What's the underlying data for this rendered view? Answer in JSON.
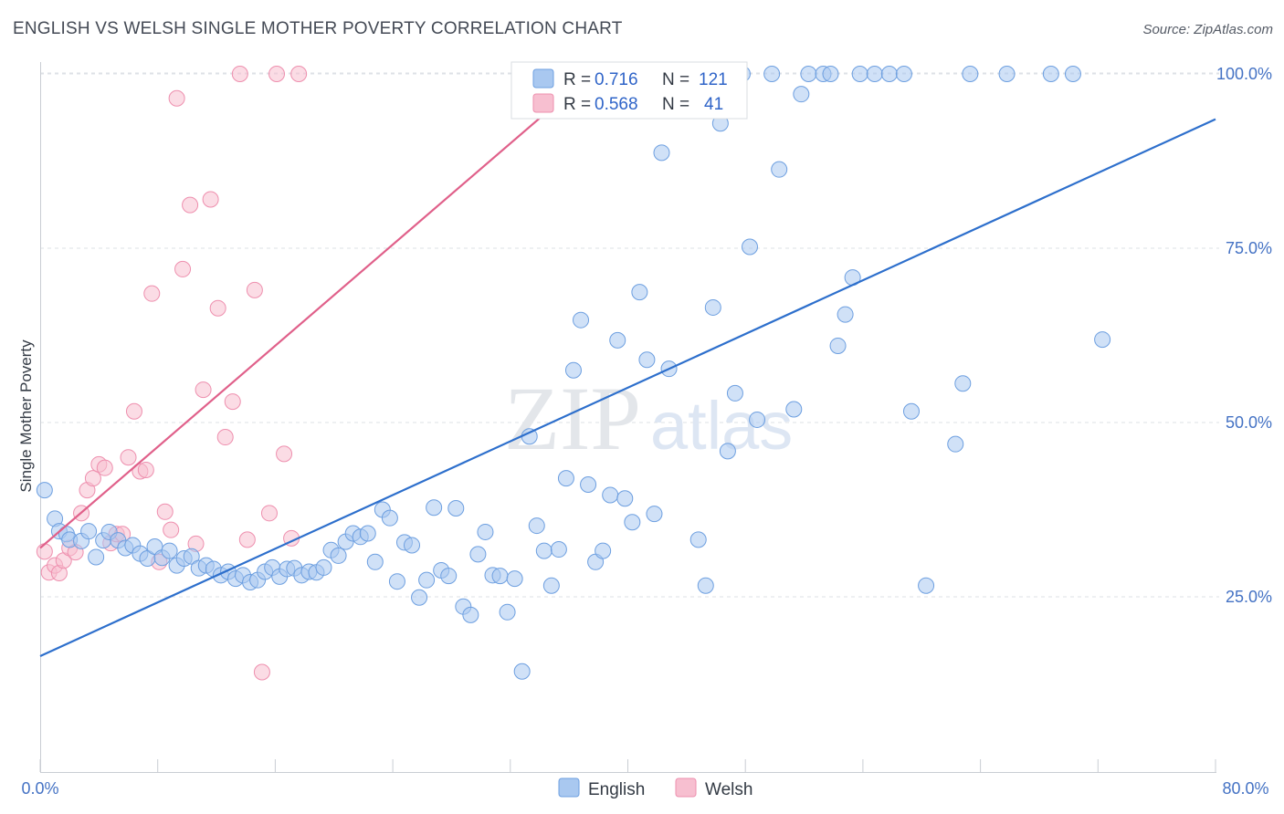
{
  "title": "ENGLISH VS WELSH SINGLE MOTHER POVERTY CORRELATION CHART",
  "source": "Source: ZipAtlas.com",
  "watermark": {
    "zip": "ZIP",
    "atlas": "atlas"
  },
  "colors": {
    "english_fill": "#a9c8f0",
    "english_stroke": "#6d9fe0",
    "english_line": "#2d6fcc",
    "welsh_fill": "#f7bfd0",
    "welsh_stroke": "#ee8fae",
    "welsh_line": "#e0608a",
    "tick_text": "#4472c4",
    "grid": "#dde1e6"
  },
  "chart_data": {
    "type": "scatter",
    "title": "ENGLISH VS WELSH SINGLE MOTHER POVERTY CORRELATION CHART",
    "ylabel": "Single Mother Poverty",
    "xlabel": "",
    "xlim": [
      0,
      80
    ],
    "ylim": [
      0,
      102
    ],
    "x_tick_labels": [
      "0.0%",
      "80.0%"
    ],
    "y_ticks": [
      {
        "value": 25,
        "label": "25.0%"
      },
      {
        "value": 50,
        "label": "50.0%"
      },
      {
        "value": 75,
        "label": "75.0%"
      },
      {
        "value": 100,
        "label": "100.0%"
      }
    ],
    "grid": "horizontal-dashed",
    "legend_position": "bottom-center",
    "stats": [
      {
        "series": "English",
        "r_label": "R =",
        "r": "0.716",
        "n_label": "N =",
        "n": "121"
      },
      {
        "series": "Welsh",
        "r_label": "R =",
        "r": "0.568",
        "n_label": "N =",
        "n": "41"
      }
    ],
    "series": [
      {
        "name": "English",
        "trend": {
          "x": [
            0,
            80
          ],
          "y": [
            16.5,
            93.5
          ]
        },
        "points": [
          [
            0.3,
            40.3
          ],
          [
            1,
            36.2
          ],
          [
            1.3,
            34.4
          ],
          [
            1.8,
            34
          ],
          [
            2,
            33.2
          ],
          [
            2.8,
            33
          ],
          [
            3.3,
            34.4
          ],
          [
            3.8,
            30.7
          ],
          [
            4.3,
            33.1
          ],
          [
            4.7,
            34.3
          ],
          [
            5.3,
            33.1
          ],
          [
            5.8,
            32
          ],
          [
            6.3,
            32.4
          ],
          [
            6.8,
            31.2
          ],
          [
            7.3,
            30.5
          ],
          [
            7.8,
            32.2
          ],
          [
            8.3,
            30.6
          ],
          [
            8.8,
            31.6
          ],
          [
            9.3,
            29.5
          ],
          [
            9.8,
            30.5
          ],
          [
            10.3,
            30.8
          ],
          [
            10.8,
            29.1
          ],
          [
            11.3,
            29.5
          ],
          [
            11.8,
            29
          ],
          [
            12.3,
            28.1
          ],
          [
            12.8,
            28.6
          ],
          [
            13.3,
            27.6
          ],
          [
            13.8,
            28.1
          ],
          [
            14.3,
            27.1
          ],
          [
            14.8,
            27.4
          ],
          [
            15.3,
            28.6
          ],
          [
            15.8,
            29.2
          ],
          [
            16.3,
            27.9
          ],
          [
            16.8,
            29
          ],
          [
            17.3,
            29.1
          ],
          [
            17.8,
            28.1
          ],
          [
            18.3,
            28.6
          ],
          [
            18.8,
            28.5
          ],
          [
            19.3,
            29.2
          ],
          [
            19.8,
            31.7
          ],
          [
            20.3,
            30.9
          ],
          [
            20.8,
            32.9
          ],
          [
            21.3,
            34.1
          ],
          [
            21.8,
            33.6
          ],
          [
            22.3,
            34.1
          ],
          [
            22.8,
            30
          ],
          [
            23.3,
            37.5
          ],
          [
            23.8,
            36.3
          ],
          [
            24.3,
            27.2
          ],
          [
            24.8,
            32.8
          ],
          [
            25.3,
            32.4
          ],
          [
            25.8,
            24.9
          ],
          [
            26.3,
            27.4
          ],
          [
            26.8,
            37.8
          ],
          [
            27.3,
            28.8
          ],
          [
            27.8,
            28
          ],
          [
            28.3,
            37.7
          ],
          [
            28.8,
            23.6
          ],
          [
            29.3,
            22.4
          ],
          [
            29.8,
            31.1
          ],
          [
            30.3,
            34.3
          ],
          [
            30.8,
            28.1
          ],
          [
            31.3,
            28
          ],
          [
            31.8,
            22.8
          ],
          [
            32.3,
            27.6
          ],
          [
            32.8,
            14.3
          ],
          [
            33.3,
            48
          ],
          [
            33.8,
            35.2
          ],
          [
            34.3,
            31.6
          ],
          [
            34.8,
            26.6
          ],
          [
            35.3,
            31.8
          ],
          [
            35.8,
            42
          ],
          [
            36.3,
            57.5
          ],
          [
            36.8,
            64.7
          ],
          [
            37.3,
            41.1
          ],
          [
            37.8,
            30
          ],
          [
            38.3,
            31.6
          ],
          [
            38.8,
            39.6
          ],
          [
            39.3,
            61.8
          ],
          [
            39.8,
            39.1
          ],
          [
            40.3,
            35.7
          ],
          [
            40.8,
            68.7
          ],
          [
            41.3,
            59
          ],
          [
            41.8,
            36.9
          ],
          [
            42.3,
            88.7
          ],
          [
            42.8,
            57.7
          ],
          [
            43.3,
            100
          ],
          [
            43.8,
            100
          ],
          [
            44.3,
            100
          ],
          [
            44.8,
            33.2
          ],
          [
            45.3,
            26.6
          ],
          [
            45.8,
            66.5
          ],
          [
            46.3,
            92.9
          ],
          [
            46.8,
            45.9
          ],
          [
            47.3,
            54.2
          ],
          [
            47.8,
            100
          ],
          [
            48.3,
            75.2
          ],
          [
            48.8,
            50.4
          ],
          [
            49.8,
            100
          ],
          [
            50.3,
            86.3
          ],
          [
            51.3,
            51.9
          ],
          [
            51.8,
            97.1
          ],
          [
            52.3,
            100
          ],
          [
            53.3,
            100
          ],
          [
            53.8,
            100
          ],
          [
            54.3,
            61
          ],
          [
            54.8,
            65.5
          ],
          [
            55.3,
            70.8
          ],
          [
            55.8,
            100
          ],
          [
            56.8,
            100
          ],
          [
            57.8,
            100
          ],
          [
            58.8,
            100
          ],
          [
            59.3,
            51.6
          ],
          [
            60.3,
            26.6
          ],
          [
            62.3,
            46.9
          ],
          [
            62.8,
            55.6
          ],
          [
            63.3,
            100
          ],
          [
            65.8,
            100
          ],
          [
            68.8,
            100
          ],
          [
            70.3,
            100
          ],
          [
            72.3,
            61.9
          ]
        ]
      },
      {
        "name": "Welsh",
        "trend": {
          "x": [
            0,
            37.5
          ],
          "y": [
            32,
            100
          ]
        },
        "points": [
          [
            0.3,
            31.5
          ],
          [
            0.6,
            28.5
          ],
          [
            1.0,
            29.5
          ],
          [
            1.3,
            28.4
          ],
          [
            1.6,
            30.2
          ],
          [
            2.0,
            32
          ],
          [
            2.4,
            31.4
          ],
          [
            2.8,
            37
          ],
          [
            3.2,
            40.3
          ],
          [
            3.6,
            42
          ],
          [
            4.0,
            44
          ],
          [
            4.4,
            43.5
          ],
          [
            4.8,
            32.7
          ],
          [
            5.2,
            34
          ],
          [
            5.6,
            34
          ],
          [
            6.0,
            45
          ],
          [
            6.4,
            51.6
          ],
          [
            6.8,
            43
          ],
          [
            7.2,
            43.2
          ],
          [
            7.6,
            68.5
          ],
          [
            8.1,
            30
          ],
          [
            8.5,
            37.2
          ],
          [
            8.9,
            34.6
          ],
          [
            9.3,
            96.5
          ],
          [
            9.7,
            72
          ],
          [
            10.2,
            81.2
          ],
          [
            10.6,
            32.6
          ],
          [
            11.1,
            54.7
          ],
          [
            11.6,
            82
          ],
          [
            12.1,
            66.4
          ],
          [
            12.6,
            47.9
          ],
          [
            13.1,
            53
          ],
          [
            13.6,
            100
          ],
          [
            14.1,
            33.2
          ],
          [
            14.6,
            69
          ],
          [
            15.1,
            14.2
          ],
          [
            15.6,
            37
          ],
          [
            16.1,
            100
          ],
          [
            16.6,
            45.5
          ],
          [
            17.1,
            33.4
          ],
          [
            17.6,
            100
          ]
        ]
      }
    ]
  },
  "legend": {
    "english": "English",
    "welsh": "Welsh"
  }
}
